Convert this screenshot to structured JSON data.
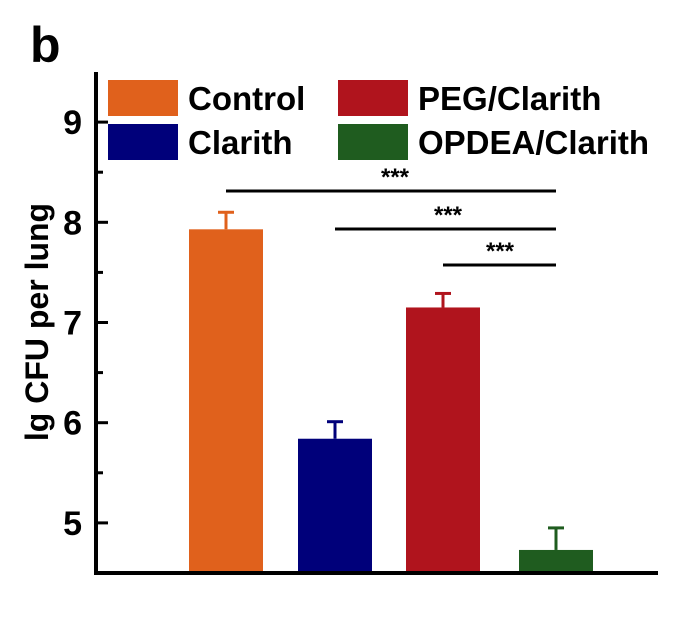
{
  "panel_label": "b",
  "chart_data": {
    "type": "bar",
    "ylabel": "lg CFU per lung",
    "xlabel": "",
    "ylim": [
      4.5,
      9.5
    ],
    "yticks": [
      5,
      6,
      7,
      8,
      9
    ],
    "ytick_labels": [
      "5",
      "6",
      "7",
      "8",
      "9"
    ],
    "categories": [
      "Control",
      "Clarith",
      "PEG/Clarith",
      "OPDEA/Clarith"
    ],
    "values": [
      7.93,
      5.84,
      7.15,
      4.73
    ],
    "errors": [
      0.17,
      0.17,
      0.14,
      0.22
    ],
    "colors": [
      "#E0611C",
      "#00007A",
      "#B0141D",
      "#1F5C1F"
    ],
    "legend": {
      "placement": "top",
      "entries": [
        "Control",
        "Clarith",
        "PEG/Clarith",
        "OPDEA/Clarith"
      ]
    },
    "significance": [
      {
        "from": 0,
        "to": 3,
        "label": "***"
      },
      {
        "from": 1,
        "to": 3,
        "label": "***"
      },
      {
        "from": 2,
        "to": 3,
        "label": "***"
      }
    ],
    "grid": false
  }
}
